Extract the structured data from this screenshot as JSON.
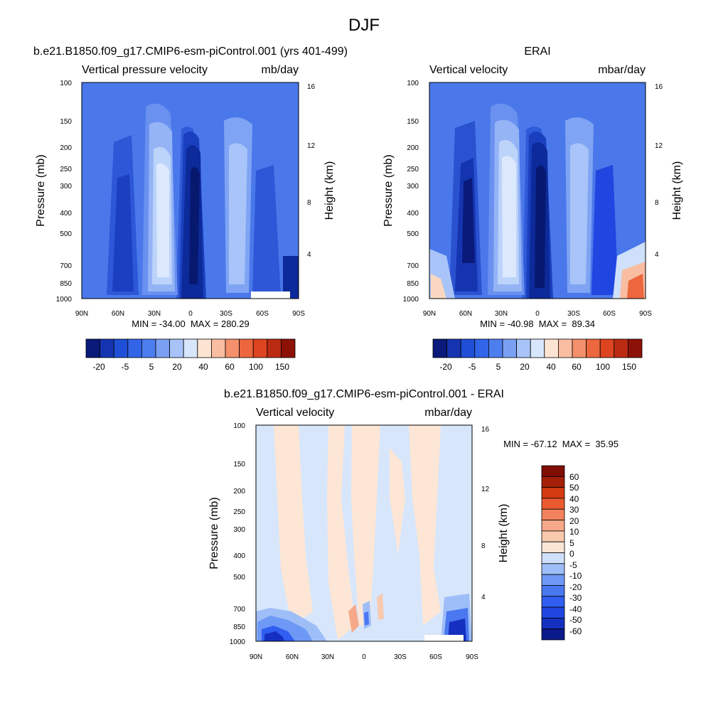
{
  "page_title": "DJF",
  "chart_data": [
    {
      "type": "heatmap",
      "panel_title": "b.e21.B1850.f09_g17.CMIP6-esm-piControl.001 (yrs 401-499)",
      "left_label": "Vertical pressure velocity",
      "right_label": "mb/day",
      "ylabel": "Pressure (mb)",
      "y2label": "Height (km)",
      "xticks": [
        "90N",
        "60N",
        "30N",
        "0",
        "30S",
        "60S",
        "90S"
      ],
      "yticks": [
        "100",
        "150",
        "200",
        "250",
        "300",
        "400",
        "500",
        "700",
        "850",
        "1000"
      ],
      "y2ticks": [
        "16",
        "12",
        "8",
        "4"
      ],
      "minmax": "MIN = -34.00  MAX = 280.29",
      "lat_range": [
        90,
        -90
      ],
      "pressure_range": [
        100,
        1000
      ],
      "field_columns": [
        {
          "lat": 90,
          "level": -12
        },
        {
          "lat": 82,
          "level": -15
        },
        {
          "lat": 75,
          "level": -25
        },
        {
          "lat": 68,
          "level": -15
        },
        {
          "lat": 60,
          "level": -12
        },
        {
          "lat": 52,
          "level": -15
        },
        {
          "lat": 45,
          "level": -10
        },
        {
          "lat": 38,
          "level": 5
        },
        {
          "lat": 30,
          "level": 12
        },
        {
          "lat": 24,
          "level": 25
        },
        {
          "lat": 18,
          "level": 8
        },
        {
          "lat": 12,
          "level": -8
        },
        {
          "lat": 6,
          "level": -25
        },
        {
          "lat": 0,
          "level": -35
        },
        {
          "lat": -6,
          "level": -30
        },
        {
          "lat": -12,
          "level": -18
        },
        {
          "lat": -18,
          "level": -8
        },
        {
          "lat": -24,
          "level": 8
        },
        {
          "lat": -30,
          "level": 5
        },
        {
          "lat": -36,
          "level": -5
        },
        {
          "lat": -45,
          "level": -12
        },
        {
          "lat": -52,
          "level": -20
        },
        {
          "lat": -60,
          "level": -15
        },
        {
          "lat": -68,
          "level": -12
        },
        {
          "lat": -75,
          "level": -15
        },
        {
          "lat": -82,
          "level": -12
        },
        {
          "lat": -90,
          "level": -10
        }
      ],
      "colorbar": {
        "colors": [
          "#0a1a7a",
          "#1535b0",
          "#1f4fd6",
          "#3264e8",
          "#4d7ef0",
          "#7aa0f4",
          "#a8c3f8",
          "#d7e6fb",
          "#fde4d2",
          "#f9bda2",
          "#f4906b",
          "#ec663e",
          "#dd4420",
          "#bb2a12",
          "#8c1208"
        ],
        "labels": [
          "-20",
          "-5",
          "5",
          "20",
          "40",
          "60",
          "100",
          "150"
        ]
      }
    },
    {
      "type": "heatmap",
      "panel_title": "ERAI",
      "left_label": "Vertical velocity",
      "right_label": "mbar/day",
      "ylabel": "Pressure (mb)",
      "y2label": "Height (km)",
      "xticks": [
        "90N",
        "60N",
        "30N",
        "0",
        "30S",
        "60S",
        "90S"
      ],
      "yticks": [
        "100",
        "150",
        "200",
        "250",
        "300",
        "400",
        "500",
        "700",
        "850",
        "1000"
      ],
      "y2ticks": [
        "16",
        "12",
        "8",
        "4"
      ],
      "minmax": "MIN = -40.98  MAX =  89.34",
      "lat_range": [
        90,
        -90
      ],
      "pressure_range": [
        100,
        1000
      ],
      "field_columns": [
        {
          "lat": 90,
          "level": -12
        },
        {
          "lat": 82,
          "level": -22
        },
        {
          "lat": 75,
          "level": -28
        },
        {
          "lat": 68,
          "level": -18
        },
        {
          "lat": 60,
          "level": -14
        },
        {
          "lat": 52,
          "level": -15
        },
        {
          "lat": 45,
          "level": -8
        },
        {
          "lat": 38,
          "level": 8
        },
        {
          "lat": 30,
          "level": 15
        },
        {
          "lat": 24,
          "level": 30
        },
        {
          "lat": 18,
          "level": 10
        },
        {
          "lat": 12,
          "level": -10
        },
        {
          "lat": 6,
          "level": -28
        },
        {
          "lat": 0,
          "level": -40
        },
        {
          "lat": -6,
          "level": -32
        },
        {
          "lat": -12,
          "level": -20
        },
        {
          "lat": -18,
          "level": -8
        },
        {
          "lat": -24,
          "level": 10
        },
        {
          "lat": -30,
          "level": 6
        },
        {
          "lat": -36,
          "level": -5
        },
        {
          "lat": -45,
          "level": -14
        },
        {
          "lat": -52,
          "level": -22
        },
        {
          "lat": -60,
          "level": -14
        },
        {
          "lat": -68,
          "level": -10
        },
        {
          "lat": -75,
          "level": -8
        },
        {
          "lat": -82,
          "level": -5
        },
        {
          "lat": -90,
          "level": 30
        }
      ],
      "colorbar": {
        "colors": [
          "#0a1a7a",
          "#1535b0",
          "#1f4fd6",
          "#3264e8",
          "#4d7ef0",
          "#7aa0f4",
          "#a8c3f8",
          "#d7e6fb",
          "#fde4d2",
          "#f9bda2",
          "#f4906b",
          "#ec663e",
          "#dd4420",
          "#bb2a12",
          "#8c1208"
        ],
        "labels": [
          "-20",
          "-5",
          "5",
          "20",
          "40",
          "60",
          "100",
          "150"
        ]
      }
    },
    {
      "type": "heatmap",
      "panel_title": "b.e21.B1850.f09_g17.CMIP6-esm-piControl.001 - ERAI",
      "left_label": "Vertical velocity",
      "right_label": "mbar/day",
      "ylabel": "Pressure (mb)",
      "y2label": "Height (km)",
      "xticks": [
        "90N",
        "60N",
        "30N",
        "0",
        "30S",
        "60S",
        "90S"
      ],
      "yticks": [
        "100",
        "150",
        "200",
        "250",
        "300",
        "400",
        "500",
        "700",
        "850",
        "1000"
      ],
      "y2ticks": [
        "16",
        "12",
        "8",
        "4"
      ],
      "minmax": "MIN = -67.12  MAX =  35.95",
      "lat_range": [
        90,
        -90
      ],
      "pressure_range": [
        100,
        1000
      ],
      "field_columns": [
        {
          "lat": 90,
          "level": -2
        },
        {
          "lat": 82,
          "level": -3
        },
        {
          "lat": 75,
          "level": -2
        },
        {
          "lat": 68,
          "level": 2
        },
        {
          "lat": 60,
          "level": 2
        },
        {
          "lat": 52,
          "level": 3
        },
        {
          "lat": 45,
          "level": 2
        },
        {
          "lat": 38,
          "level": -2
        },
        {
          "lat": 30,
          "level": -3
        },
        {
          "lat": 24,
          "level": 2
        },
        {
          "lat": 18,
          "level": 3
        },
        {
          "lat": 12,
          "level": 2
        },
        {
          "lat": 6,
          "level": -2
        },
        {
          "lat": 0,
          "level": 2
        },
        {
          "lat": -6,
          "level": 3
        },
        {
          "lat": -12,
          "level": -2
        },
        {
          "lat": -18,
          "level": -3
        },
        {
          "lat": -24,
          "level": -2
        },
        {
          "lat": -30,
          "level": -2
        },
        {
          "lat": -36,
          "level": 2
        },
        {
          "lat": -45,
          "level": 3
        },
        {
          "lat": -52,
          "level": 2
        },
        {
          "lat": -60,
          "level": -2
        },
        {
          "lat": -68,
          "level": -3
        },
        {
          "lat": -75,
          "level": -2
        },
        {
          "lat": -82,
          "level": -3
        },
        {
          "lat": -90,
          "level": -2
        }
      ],
      "colorbar": {
        "colors": [
          "#0b1a8a",
          "#1530c0",
          "#1f46e0",
          "#2f5ef0",
          "#4a78f0",
          "#6e98f6",
          "#9ebef8",
          "#cfe0fa",
          "#fbe6d6",
          "#f9c9ad",
          "#f6a888",
          "#f3835c",
          "#eb5b30",
          "#d33a12",
          "#a51f08",
          "#7f0f05"
        ],
        "labels": [
          "60",
          "50",
          "40",
          "30",
          "20",
          "10",
          "5",
          "0",
          "-5",
          "-10",
          "-20",
          "-30",
          "-40",
          "-50",
          "-60"
        ]
      }
    }
  ]
}
